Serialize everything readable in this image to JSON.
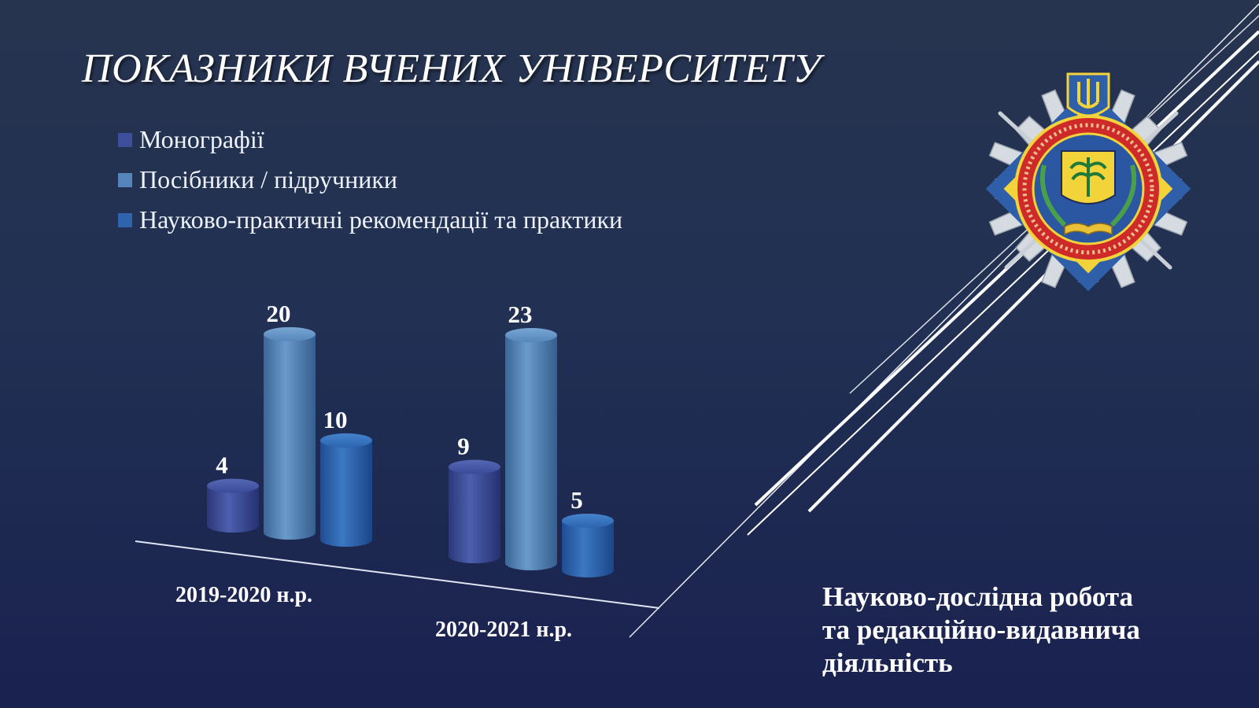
{
  "slide": {
    "title": "ПОКАЗНИКИ ВЧЕНИХ УНІВЕРСИТЕТУ",
    "caption_lines": [
      "Науково-дослідна робота",
      "та редакційно-видавнича",
      "діяльність"
    ]
  },
  "logo": {
    "name": "university-emblem"
  },
  "colors": {
    "background_top": "#27344f",
    "background_bottom": "#1a2250",
    "series": [
      "#3d4f9a",
      "#5585bb",
      "#2e63ad"
    ]
  },
  "chart_data": {
    "type": "bar",
    "style": "3d-cylinder",
    "categories": [
      "2019-2020 н.р.",
      "2020-2021 н.р."
    ],
    "series": [
      {
        "name": "Монографії",
        "values": [
          4,
          9
        ]
      },
      {
        "name": "Посібники / підручники",
        "values": [
          20,
          23
        ]
      },
      {
        "name": "Науково-практичні рекомендації та практики",
        "values": [
          10,
          5
        ]
      }
    ],
    "data_labels": true,
    "legend_position": "top-left",
    "grid": false,
    "ylim": [
      0,
      23
    ]
  }
}
